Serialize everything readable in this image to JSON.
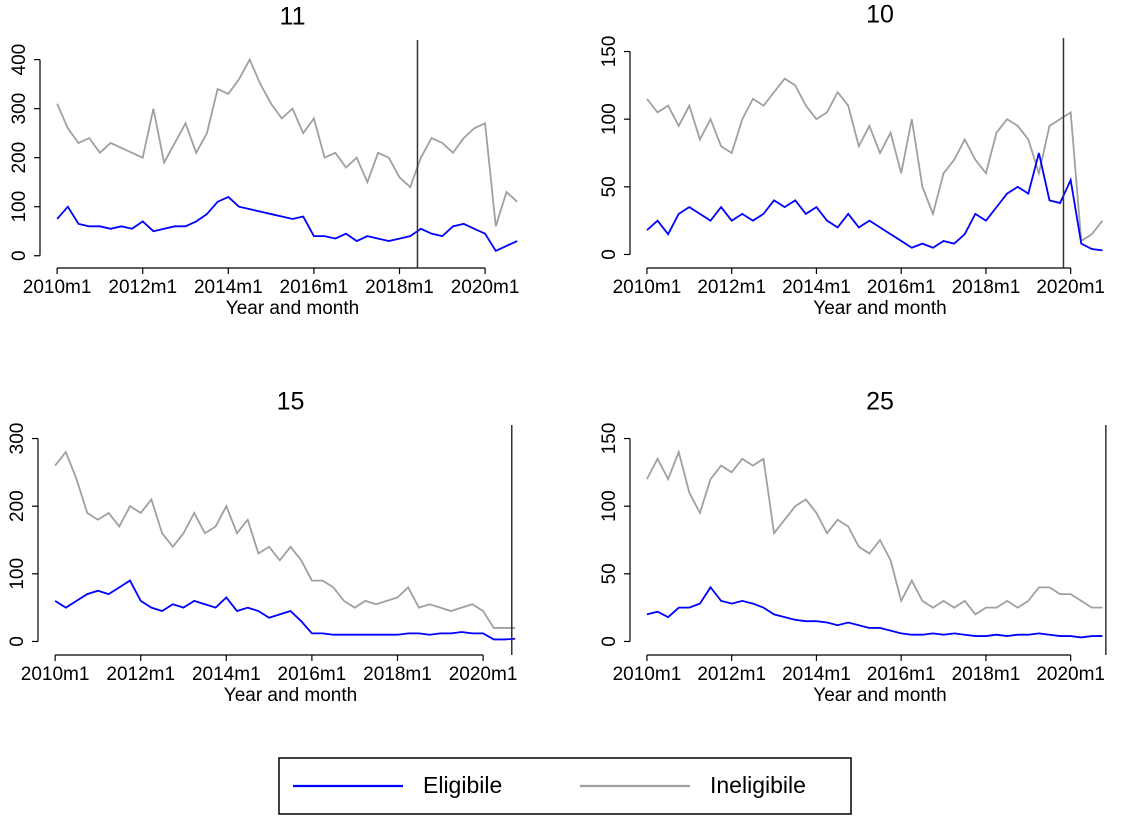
{
  "chart_data": [
    {
      "type": "line",
      "title": "11",
      "xlabel": "Year and month",
      "x": [
        2010,
        2010.25,
        2010.5,
        2010.75,
        2011,
        2011.25,
        2011.5,
        2011.75,
        2012,
        2012.25,
        2012.5,
        2012.75,
        2013,
        2013.25,
        2013.5,
        2013.75,
        2014,
        2014.25,
        2014.5,
        2014.75,
        2015,
        2015.25,
        2015.5,
        2015.75,
        2016,
        2016.25,
        2016.5,
        2016.75,
        2017,
        2017.25,
        2017.5,
        2017.75,
        2018,
        2018.25,
        2018.5,
        2018.75,
        2019,
        2019.25,
        2019.5,
        2019.75,
        2020,
        2020.25,
        2020.5,
        2020.75
      ],
      "xlim": [
        2009.6,
        2021.4
      ],
      "xticks": [
        {
          "value": 2010,
          "label": "2010m1"
        },
        {
          "value": 2012,
          "label": "2012m1"
        },
        {
          "value": 2014,
          "label": "2014m1"
        },
        {
          "value": 2016,
          "label": "2016m1"
        },
        {
          "value": 2018,
          "label": "2018m1"
        },
        {
          "value": 2020,
          "label": "2020m1"
        }
      ],
      "ylim": [
        -25,
        440
      ],
      "yticks": [
        0,
        100,
        200,
        300,
        400
      ],
      "vline": 2018.42,
      "series": [
        {
          "color": "#0000ff",
          "values": [
            75,
            100,
            65,
            60,
            60,
            55,
            60,
            55,
            70,
            50,
            55,
            60,
            60,
            70,
            85,
            110,
            120,
            100,
            95,
            90,
            85,
            80,
            75,
            80,
            40,
            40,
            35,
            45,
            30,
            40,
            35,
            30,
            35,
            40,
            55,
            45,
            40,
            60,
            65,
            55,
            45,
            10,
            20,
            30
          ]
        },
        {
          "color": "#a0a0a0",
          "values": [
            310,
            260,
            230,
            240,
            210,
            230,
            220,
            210,
            200,
            300,
            190,
            230,
            270,
            210,
            250,
            340,
            330,
            360,
            400,
            350,
            310,
            280,
            300,
            250,
            280,
            200,
            210,
            180,
            200,
            150,
            210,
            200,
            160,
            140,
            200,
            240,
            230,
            210,
            240,
            260,
            270,
            60,
            130,
            110
          ]
        }
      ]
    },
    {
      "type": "line",
      "title": "10",
      "xlabel": "Year and month",
      "x": [
        2010,
        2010.25,
        2010.5,
        2010.75,
        2011,
        2011.25,
        2011.5,
        2011.75,
        2012,
        2012.25,
        2012.5,
        2012.75,
        2013,
        2013.25,
        2013.5,
        2013.75,
        2014,
        2014.25,
        2014.5,
        2014.75,
        2015,
        2015.25,
        2015.5,
        2015.75,
        2016,
        2016.25,
        2016.5,
        2016.75,
        2017,
        2017.25,
        2017.5,
        2017.75,
        2018,
        2018.25,
        2018.5,
        2018.75,
        2019,
        2019.25,
        2019.5,
        2019.75,
        2020,
        2020.25,
        2020.5,
        2020.75
      ],
      "xlim": [
        2009.6,
        2021.4
      ],
      "xticks": [
        {
          "value": 2010,
          "label": "2010m1"
        },
        {
          "value": 2012,
          "label": "2012m1"
        },
        {
          "value": 2014,
          "label": "2014m1"
        },
        {
          "value": 2016,
          "label": "2016m1"
        },
        {
          "value": 2018,
          "label": "2018m1"
        },
        {
          "value": 2020,
          "label": "2020m1"
        }
      ],
      "ylim": [
        -10,
        160
      ],
      "yticks": [
        0,
        50,
        100,
        150
      ],
      "vline": 2019.83,
      "series": [
        {
          "color": "#0000ff",
          "values": [
            18,
            25,
            15,
            30,
            35,
            30,
            25,
            35,
            25,
            30,
            25,
            30,
            40,
            35,
            40,
            30,
            35,
            25,
            20,
            30,
            20,
            25,
            20,
            15,
            10,
            5,
            8,
            5,
            10,
            8,
            15,
            30,
            25,
            35,
            45,
            50,
            45,
            75,
            40,
            38,
            55,
            8,
            4,
            3
          ]
        },
        {
          "color": "#a0a0a0",
          "values": [
            115,
            105,
            110,
            95,
            110,
            85,
            100,
            80,
            75,
            100,
            115,
            110,
            120,
            130,
            125,
            110,
            100,
            105,
            120,
            110,
            80,
            95,
            75,
            90,
            60,
            100,
            50,
            30,
            60,
            70,
            85,
            70,
            60,
            90,
            100,
            95,
            85,
            60,
            95,
            100,
            105,
            10,
            15,
            25
          ]
        }
      ]
    },
    {
      "type": "line",
      "title": "15",
      "xlabel": "Year and month",
      "x": [
        2010,
        2010.25,
        2010.5,
        2010.75,
        2011,
        2011.25,
        2011.5,
        2011.75,
        2012,
        2012.25,
        2012.5,
        2012.75,
        2013,
        2013.25,
        2013.5,
        2013.75,
        2014,
        2014.25,
        2014.5,
        2014.75,
        2015,
        2015.25,
        2015.5,
        2015.75,
        2016,
        2016.25,
        2016.5,
        2016.75,
        2017,
        2017.25,
        2017.5,
        2017.75,
        2018,
        2018.25,
        2018.5,
        2018.75,
        2019,
        2019.25,
        2019.5,
        2019.75,
        2020,
        2020.25,
        2020.5,
        2020.75
      ],
      "xlim": [
        2009.6,
        2021.4
      ],
      "xticks": [
        {
          "value": 2010,
          "label": "2010m1"
        },
        {
          "value": 2012,
          "label": "2012m1"
        },
        {
          "value": 2014,
          "label": "2014m1"
        },
        {
          "value": 2016,
          "label": "2016m1"
        },
        {
          "value": 2018,
          "label": "2018m1"
        },
        {
          "value": 2020,
          "label": "2020m1"
        }
      ],
      "ylim": [
        -20,
        320
      ],
      "yticks": [
        0,
        100,
        200,
        300
      ],
      "vline": 2020.67,
      "series": [
        {
          "color": "#0000ff",
          "values": [
            60,
            50,
            60,
            70,
            75,
            70,
            80,
            90,
            60,
            50,
            45,
            55,
            50,
            60,
            55,
            50,
            65,
            45,
            50,
            45,
            35,
            40,
            45,
            30,
            12,
            12,
            10,
            10,
            10,
            10,
            10,
            10,
            10,
            12,
            12,
            10,
            12,
            12,
            14,
            12,
            12,
            3,
            3,
            4
          ]
        },
        {
          "color": "#a0a0a0",
          "values": [
            260,
            280,
            240,
            190,
            180,
            190,
            170,
            200,
            190,
            210,
            160,
            140,
            160,
            190,
            160,
            170,
            200,
            160,
            180,
            130,
            140,
            120,
            140,
            120,
            90,
            90,
            80,
            60,
            50,
            60,
            55,
            60,
            65,
            80,
            50,
            55,
            50,
            45,
            50,
            55,
            45,
            20,
            20,
            20
          ]
        }
      ]
    },
    {
      "type": "line",
      "title": "25",
      "xlabel": "Year and month",
      "x": [
        2010,
        2010.25,
        2010.5,
        2010.75,
        2011,
        2011.25,
        2011.5,
        2011.75,
        2012,
        2012.25,
        2012.5,
        2012.75,
        2013,
        2013.25,
        2013.5,
        2013.75,
        2014,
        2014.25,
        2014.5,
        2014.75,
        2015,
        2015.25,
        2015.5,
        2015.75,
        2016,
        2016.25,
        2016.5,
        2016.75,
        2017,
        2017.25,
        2017.5,
        2017.75,
        2018,
        2018.25,
        2018.5,
        2018.75,
        2019,
        2019.25,
        2019.5,
        2019.75,
        2020,
        2020.25,
        2020.5,
        2020.75
      ],
      "xlim": [
        2009.6,
        2021.4
      ],
      "xticks": [
        {
          "value": 2010,
          "label": "2010m1"
        },
        {
          "value": 2012,
          "label": "2012m1"
        },
        {
          "value": 2014,
          "label": "2014m1"
        },
        {
          "value": 2016,
          "label": "2016m1"
        },
        {
          "value": 2018,
          "label": "2018m1"
        },
        {
          "value": 2020,
          "label": "2020m1"
        }
      ],
      "ylim": [
        -10,
        160
      ],
      "yticks": [
        0,
        50,
        100,
        150
      ],
      "vline": 2020.83,
      "series": [
        {
          "color": "#0000ff",
          "values": [
            20,
            22,
            18,
            25,
            25,
            28,
            40,
            30,
            28,
            30,
            28,
            25,
            20,
            18,
            16,
            15,
            15,
            14,
            12,
            14,
            12,
            10,
            10,
            8,
            6,
            5,
            5,
            6,
            5,
            6,
            5,
            4,
            4,
            5,
            4,
            5,
            5,
            6,
            5,
            4,
            4,
            3,
            4,
            4
          ]
        },
        {
          "color": "#a0a0a0",
          "values": [
            120,
            135,
            120,
            140,
            110,
            95,
            120,
            130,
            125,
            135,
            130,
            135,
            80,
            90,
            100,
            105,
            95,
            80,
            90,
            85,
            70,
            65,
            75,
            60,
            30,
            45,
            30,
            25,
            30,
            25,
            30,
            20,
            25,
            25,
            30,
            25,
            30,
            40,
            40,
            35,
            35,
            30,
            25,
            25
          ]
        }
      ]
    }
  ],
  "legend": [
    {
      "name": "Eligibile",
      "color": "#0000ff"
    },
    {
      "name": "Ineligibile",
      "color": "#a0a0a0"
    }
  ]
}
